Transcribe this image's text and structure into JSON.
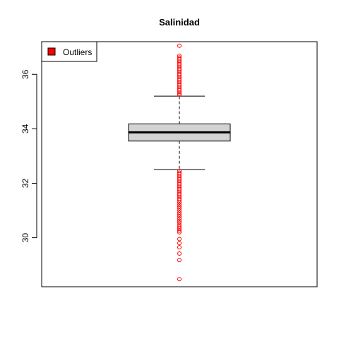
{
  "chart_data": {
    "type": "boxplot",
    "title": "Salinidad",
    "xlabel": "",
    "ylabel": "",
    "ylim": [
      28.2,
      37.2
    ],
    "y_ticks": [
      30,
      32,
      34,
      36
    ],
    "grid": false,
    "legend": {
      "position": "top-left",
      "entries": [
        {
          "label": "Outliers",
          "color": "#ff0000"
        }
      ]
    },
    "colors": {
      "box_fill": "#d3d3d3",
      "outlier": "#ff0000",
      "line": "#000000"
    },
    "box": {
      "lower_whisker": 32.5,
      "q1": 33.55,
      "median": 33.87,
      "q3": 34.18,
      "upper_whisker": 35.2
    },
    "outliers": [
      37.05,
      36.68,
      36.62,
      36.56,
      36.5,
      36.44,
      36.38,
      36.32,
      36.26,
      36.2,
      36.14,
      36.08,
      36.02,
      35.96,
      35.9,
      35.84,
      35.78,
      35.72,
      35.66,
      35.6,
      35.54,
      35.48,
      35.42,
      35.36,
      35.3,
      35.25,
      32.45,
      32.39,
      32.33,
      32.27,
      32.21,
      32.15,
      32.09,
      32.03,
      31.97,
      31.91,
      31.85,
      31.79,
      31.73,
      31.67,
      31.61,
      31.55,
      31.49,
      31.43,
      31.37,
      31.3,
      31.22,
      31.15,
      31.08,
      31.0,
      30.92,
      30.85,
      30.78,
      30.7,
      30.62,
      30.55,
      30.47,
      30.4,
      30.33,
      30.26,
      30.2,
      29.95,
      29.8,
      29.65,
      29.42,
      29.18,
      28.48
    ]
  }
}
